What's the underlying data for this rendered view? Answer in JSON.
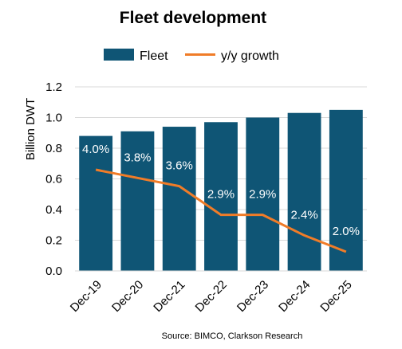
{
  "chart_data": {
    "type": "bar",
    "title": "Fleet development",
    "categories": [
      "Dec-19",
      "Dec-20",
      "Dec-21",
      "Dec-22",
      "Dec-23",
      "Dec-24",
      "Dec-25"
    ],
    "series": [
      {
        "name": "Fleet",
        "type": "bar",
        "values": [
          0.88,
          0.91,
          0.94,
          0.97,
          1.0,
          1.03,
          1.05
        ],
        "color": "#0f5575"
      },
      {
        "name": "y/y growth",
        "type": "line",
        "values": [
          4.0,
          3.8,
          3.6,
          2.9,
          2.9,
          2.4,
          2.0
        ],
        "data_labels": [
          "4.0%",
          "3.8%",
          "3.6%",
          "2.9%",
          "2.9%",
          "2.4%",
          "2.0%"
        ],
        "color": "#f07c28"
      }
    ],
    "ylabel": "Billion DWT",
    "xlabel": "",
    "ylim": [
      0,
      1.2
    ],
    "yticks": [
      "0.0",
      "0.2",
      "0.4",
      "0.6",
      "0.8",
      "1.0",
      "1.2"
    ],
    "legend_position": "top",
    "grid": "horizontal",
    "source": "Source: BIMCO, Clarkson Research"
  }
}
